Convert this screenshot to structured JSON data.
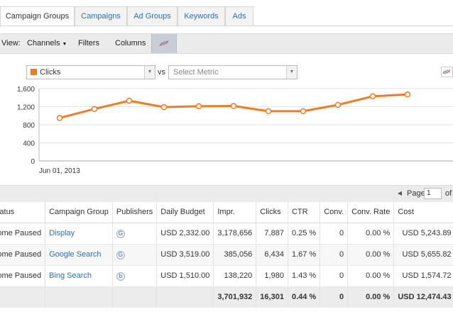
{
  "tabs": [
    {
      "label": "Campaign Groups",
      "active": true
    },
    {
      "label": "Campaigns"
    },
    {
      "label": "Ad Groups"
    },
    {
      "label": "Keywords"
    },
    {
      "label": "Ads"
    }
  ],
  "toolbar": {
    "view_label": "View:",
    "channels": "Channels",
    "filters": "Filters",
    "columns": "Columns",
    "toggle_icon": "chart-toggle-icon"
  },
  "metric_selector": {
    "primary": "Clicks",
    "vs_label": "vs",
    "secondary_placeholder": "Select Metric",
    "primary_color": "#f47a1f"
  },
  "chart_data": {
    "type": "line",
    "x_label_start": "Jun 01, 2013",
    "y_ticks": [
      "1,600",
      "1,200",
      "800",
      "400",
      "0"
    ],
    "ylim": [
      0,
      1600
    ],
    "grid": true,
    "series": [
      {
        "values": [
          950,
          1150,
          1330,
          1190,
          1210,
          1215,
          1100,
          1100,
          1240,
          1430,
          1470
        ]
      }
    ],
    "color": "#f47a1f"
  },
  "pager": {
    "page_label": "Page",
    "page_value": "1",
    "of_label": "of"
  },
  "table": {
    "headers": [
      "Status",
      "Campaign Group",
      "Publishers",
      "Daily Budget",
      "Impr.",
      "Clicks",
      "CTR",
      "Conv.",
      "Conv. Rate",
      "Cost"
    ],
    "rows": [
      {
        "status": "Some Paused",
        "group": "Display",
        "publisher": "G",
        "budget": "USD 2,332.00",
        "impr": "3,178,656",
        "clicks": "7,887",
        "ctr": "0.25 %",
        "conv": "0",
        "conv_rate": "0.00 %",
        "cost": "USD 5,243.89"
      },
      {
        "status": "Some Paused",
        "group": "Google Search",
        "publisher": "G",
        "budget": "USD 3,519.00",
        "impr": "385,056",
        "clicks": "6,434",
        "ctr": "1.67 %",
        "conv": "0",
        "conv_rate": "0.00 %",
        "cost": "USD 5,655.82"
      },
      {
        "status": "Some Paused",
        "group": "Bing Search",
        "publisher": "b",
        "budget": "USD 1,510.00",
        "impr": "138,220",
        "clicks": "1,980",
        "ctr": "1.43 %",
        "conv": "0",
        "conv_rate": "0.00 %",
        "cost": "USD 1,574.72"
      }
    ],
    "totals": {
      "impr": "3,701,932",
      "clicks": "16,301",
      "ctr": "0.44 %",
      "conv": "0",
      "conv_rate": "0.00 %",
      "cost": "USD 12,474.43"
    }
  }
}
